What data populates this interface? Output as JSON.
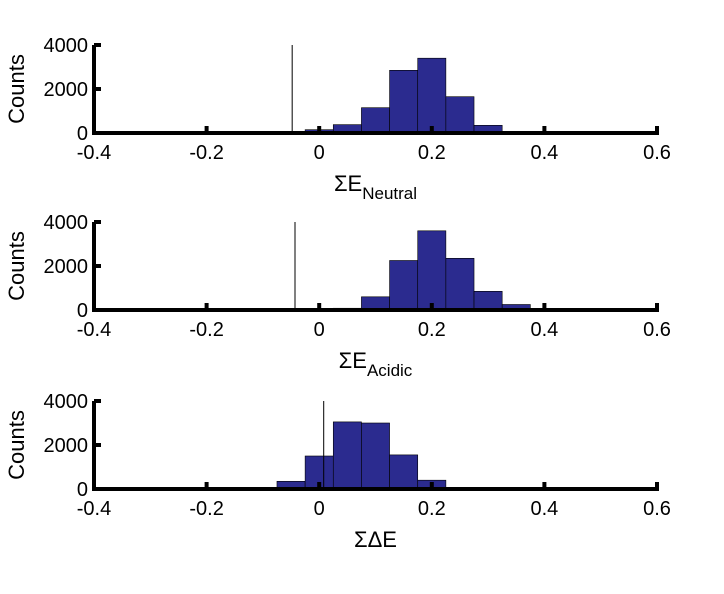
{
  "chart_data": [
    {
      "type": "bar",
      "histogram": true,
      "ylabel": "Counts",
      "xlabel": {
        "main": "ΣE",
        "sub": "Neutral"
      },
      "xlim": [
        -0.4,
        0.6
      ],
      "ylim": [
        0,
        4000
      ],
      "xticks": [
        "-0.4",
        "-0.2",
        "0",
        "0.2",
        "0.4",
        "0.6"
      ],
      "yticks": [
        "0",
        "2000",
        "4000"
      ],
      "bin_width": 0.05,
      "bins": [
        {
          "x0": -0.075,
          "count": 20
        },
        {
          "x0": -0.025,
          "count": 150
        },
        {
          "x0": 0.025,
          "count": 380
        },
        {
          "x0": 0.075,
          "count": 1150
        },
        {
          "x0": 0.125,
          "count": 2850
        },
        {
          "x0": 0.175,
          "count": 3400
        },
        {
          "x0": 0.225,
          "count": 1650
        },
        {
          "x0": 0.275,
          "count": 350
        },
        {
          "x0": 0.325,
          "count": 60
        }
      ],
      "reference_line_x": -0.048,
      "bar_color": "#2b2b8f"
    },
    {
      "type": "bar",
      "histogram": true,
      "ylabel": "Counts",
      "xlabel": {
        "main": "ΣE",
        "sub": "Acidic"
      },
      "xlim": [
        -0.4,
        0.6
      ],
      "ylim": [
        0,
        4000
      ],
      "xticks": [
        "-0.4",
        "-0.2",
        "0",
        "0.2",
        "0.4",
        "0.6"
      ],
      "yticks": [
        "0",
        "2000",
        "4000"
      ],
      "bin_width": 0.05,
      "bins": [
        {
          "x0": 0.025,
          "count": 80
        },
        {
          "x0": 0.075,
          "count": 600
        },
        {
          "x0": 0.125,
          "count": 2250
        },
        {
          "x0": 0.175,
          "count": 3600
        },
        {
          "x0": 0.225,
          "count": 2350
        },
        {
          "x0": 0.275,
          "count": 850
        },
        {
          "x0": 0.325,
          "count": 250
        },
        {
          "x0": 0.375,
          "count": 40
        }
      ],
      "reference_line_x": -0.043,
      "bar_color": "#2b2b8f"
    },
    {
      "type": "bar",
      "histogram": true,
      "ylabel": "Counts",
      "xlabel": {
        "main": "ΣΔE",
        "sub": ""
      },
      "xlim": [
        -0.4,
        0.6
      ],
      "ylim": [
        0,
        4000
      ],
      "xticks": [
        "-0.4",
        "-0.2",
        "0",
        "0.2",
        "0.4",
        "0.6"
      ],
      "yticks": [
        "0",
        "2000",
        "4000"
      ],
      "bin_width": 0.05,
      "bins": [
        {
          "x0": -0.075,
          "count": 350
        },
        {
          "x0": -0.025,
          "count": 1500
        },
        {
          "x0": 0.025,
          "count": 3050
        },
        {
          "x0": 0.075,
          "count": 3000
        },
        {
          "x0": 0.125,
          "count": 1550
        },
        {
          "x0": 0.175,
          "count": 400
        },
        {
          "x0": 0.225,
          "count": 40
        }
      ],
      "reference_line_x": 0.008,
      "bar_color": "#2b2b8f"
    }
  ]
}
